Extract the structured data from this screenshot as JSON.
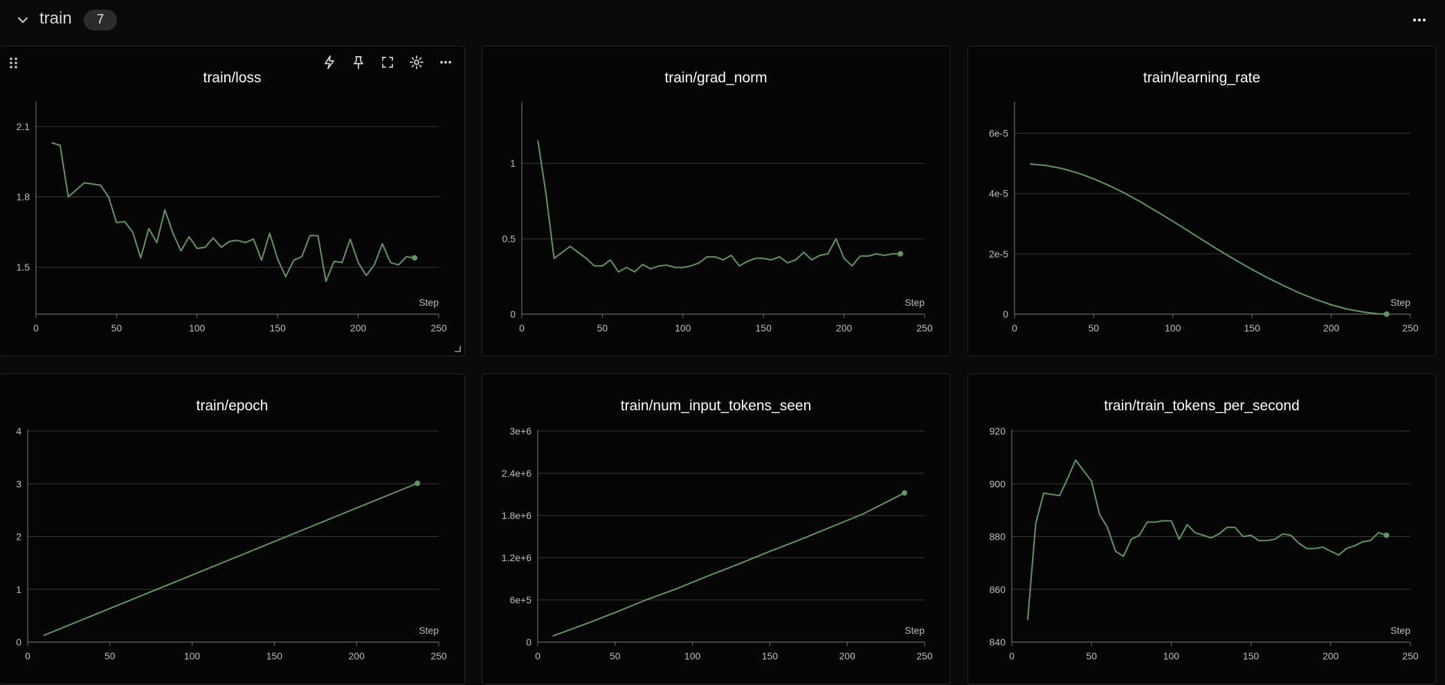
{
  "section": {
    "title": "train",
    "count": "7"
  },
  "colors": {
    "line": "#5e9a5e",
    "grid": "#3a3a3a",
    "axis": "#6a6a6a",
    "text": "#bdbdbd"
  },
  "chart_data": [
    {
      "type": "line",
      "title": "train/loss",
      "xlabel": "Step",
      "xlim": [
        0,
        250
      ],
      "xticks": [
        0,
        50,
        100,
        150,
        200,
        250
      ],
      "ylim": [
        1.3,
        2.2
      ],
      "yticks": [
        1.5,
        1.8,
        2.1
      ],
      "ytick_labels": [
        "1.5",
        "1.8",
        "2.1"
      ],
      "x": [
        10,
        15,
        20,
        25,
        30,
        35,
        40,
        45,
        50,
        55,
        60,
        65,
        70,
        75,
        80,
        85,
        90,
        95,
        100,
        105,
        110,
        115,
        120,
        125,
        130,
        135,
        140,
        145,
        150,
        155,
        160,
        165,
        170,
        175,
        180,
        185,
        190,
        195,
        200,
        205,
        210,
        215,
        220,
        225,
        230,
        235
      ],
      "y": [
        2.03,
        2.02,
        1.8,
        1.83,
        1.86,
        1.855,
        1.85,
        1.8,
        1.69,
        1.695,
        1.65,
        1.54,
        1.665,
        1.605,
        1.745,
        1.645,
        1.57,
        1.63,
        1.58,
        1.585,
        1.625,
        1.585,
        1.61,
        1.615,
        1.605,
        1.62,
        1.53,
        1.645,
        1.535,
        1.46,
        1.53,
        1.545,
        1.635,
        1.635,
        1.44,
        1.525,
        1.52,
        1.62,
        1.52,
        1.465,
        1.51,
        1.6,
        1.52,
        1.51,
        1.545,
        1.54
      ]
    },
    {
      "type": "line",
      "title": "train/grad_norm",
      "xlabel": "Step",
      "xlim": [
        0,
        250
      ],
      "xticks": [
        0,
        50,
        100,
        150,
        200,
        250
      ],
      "ylim": [
        0,
        1.4
      ],
      "yticks": [
        0,
        0.5,
        1
      ],
      "ytick_labels": [
        "0",
        "0.5",
        "1"
      ],
      "x": [
        10,
        15,
        20,
        25,
        30,
        35,
        40,
        45,
        50,
        55,
        60,
        65,
        70,
        75,
        80,
        85,
        90,
        95,
        100,
        105,
        110,
        115,
        120,
        125,
        130,
        135,
        140,
        145,
        150,
        155,
        160,
        165,
        170,
        175,
        180,
        185,
        190,
        195,
        200,
        205,
        210,
        215,
        220,
        225,
        230,
        235
      ],
      "y": [
        1.15,
        0.8,
        0.37,
        0.41,
        0.45,
        0.41,
        0.37,
        0.32,
        0.32,
        0.36,
        0.28,
        0.31,
        0.28,
        0.33,
        0.3,
        0.32,
        0.325,
        0.31,
        0.31,
        0.32,
        0.34,
        0.38,
        0.38,
        0.36,
        0.39,
        0.32,
        0.35,
        0.37,
        0.37,
        0.36,
        0.38,
        0.34,
        0.36,
        0.41,
        0.36,
        0.39,
        0.4,
        0.5,
        0.37,
        0.32,
        0.385,
        0.385,
        0.4,
        0.39,
        0.4,
        0.4
      ]
    },
    {
      "type": "line",
      "title": "train/learning_rate",
      "xlabel": "Step",
      "xlim": [
        0,
        250
      ],
      "xticks": [
        0,
        50,
        100,
        150,
        200,
        250
      ],
      "ylim": [
        0,
        7e-05
      ],
      "yticks": [
        0,
        2e-05,
        4e-05,
        6e-05
      ],
      "ytick_labels": [
        "0",
        "2e-5",
        "4e-5",
        "6e-5"
      ],
      "x": [
        10,
        20,
        30,
        40,
        50,
        60,
        70,
        80,
        90,
        100,
        110,
        120,
        130,
        140,
        150,
        160,
        170,
        180,
        190,
        200,
        210,
        220,
        230,
        235
      ],
      "y": [
        4.98e-05,
        4.93e-05,
        4.83e-05,
        4.68e-05,
        4.49e-05,
        4.26e-05,
        4e-05,
        3.71e-05,
        3.4e-05,
        3.08e-05,
        2.75e-05,
        2.42e-05,
        2.09e-05,
        1.78e-05,
        1.48e-05,
        1.2e-05,
        9.4e-06,
        7e-06,
        4.9e-06,
        3.1e-06,
        1.7e-06,
        7e-07,
        1e-07,
        0
      ]
    },
    {
      "type": "line",
      "title": "train/epoch",
      "xlabel": "Step",
      "xlim": [
        0,
        250
      ],
      "xticks": [
        0,
        50,
        100,
        150,
        200,
        250
      ],
      "ylim": [
        0,
        4
      ],
      "yticks": [
        0,
        1,
        2,
        3,
        4
      ],
      "ytick_labels": [
        "0",
        "1",
        "2",
        "3",
        "4"
      ],
      "x": [
        10,
        237
      ],
      "y": [
        0.13,
        3.01
      ]
    },
    {
      "type": "line",
      "title": "train/num_input_tokens_seen",
      "xlabel": "Step",
      "xlim": [
        0,
        250
      ],
      "xticks": [
        0,
        50,
        100,
        150,
        200,
        250
      ],
      "ylim": [
        0,
        3000000
      ],
      "yticks": [
        0,
        600000,
        1200000,
        1800000,
        2400000,
        3000000
      ],
      "ytick_labels": [
        "0",
        "6e+5",
        "1.2e+6",
        "1.8e+6",
        "2.4e+6",
        "3e+6"
      ],
      "x": [
        10,
        30,
        50,
        70,
        90,
        110,
        130,
        150,
        170,
        190,
        210,
        237
      ],
      "y": [
        90000,
        250000,
        420000,
        600000,
        760000,
        940000,
        1110000,
        1290000,
        1460000,
        1640000,
        1820000,
        2120000
      ]
    },
    {
      "type": "line",
      "title": "train/train_tokens_per_second",
      "xlabel": "Step",
      "xlim": [
        0,
        250
      ],
      "xticks": [
        0,
        50,
        100,
        150,
        200,
        250
      ],
      "ylim": [
        840,
        920
      ],
      "yticks": [
        840,
        860,
        880,
        900,
        920
      ],
      "ytick_labels": [
        "840",
        "860",
        "880",
        "900",
        "920"
      ],
      "x": [
        10,
        15,
        20,
        25,
        30,
        35,
        40,
        45,
        50,
        55,
        60,
        65,
        70,
        75,
        80,
        85,
        90,
        95,
        100,
        105,
        110,
        115,
        120,
        125,
        130,
        135,
        140,
        145,
        150,
        155,
        160,
        165,
        170,
        175,
        180,
        185,
        190,
        195,
        200,
        205,
        210,
        215,
        220,
        225,
        230,
        235
      ],
      "y": [
        848.5,
        885,
        896.5,
        896,
        895.5,
        902,
        909,
        905,
        901,
        888.5,
        883.5,
        874.5,
        872.5,
        879,
        880.5,
        885.5,
        885.5,
        886,
        886,
        879,
        884.5,
        881.5,
        880.5,
        879.5,
        881,
        883.5,
        883.5,
        880,
        880.5,
        878.5,
        878.5,
        879,
        881,
        880.5,
        877.5,
        875.5,
        875.5,
        876,
        874.5,
        873,
        875.5,
        876.5,
        878,
        878.5,
        881.5,
        880.5
      ]
    }
  ]
}
